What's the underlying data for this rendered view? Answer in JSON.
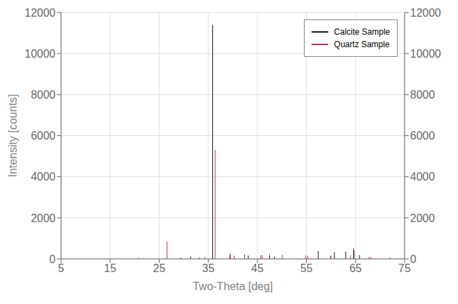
{
  "chart_data": {
    "type": "stem",
    "xlabel": "Two-Theta [deg]",
    "ylabel": "Intensity [counts]",
    "xlim": [
      5,
      75
    ],
    "ylim": [
      0,
      12000
    ],
    "xticks": [
      5,
      15,
      25,
      35,
      45,
      55,
      65,
      75
    ],
    "yticks": [
      0,
      2000,
      4000,
      6000,
      8000,
      10000,
      12000
    ],
    "y2lim": [
      0,
      12000
    ],
    "y2ticks": [
      0,
      2000,
      4000,
      6000,
      8000,
      10000,
      12000
    ],
    "grid": true,
    "legend": "upper right",
    "series": [
      {
        "name": "Calcite Sample",
        "color": "#1a1a1a",
        "x": [
          29.4,
          31.4,
          35.9,
          39.4,
          43.15,
          47.5,
          48.5,
          57.4,
          60.7,
          63.0,
          64.7,
          65.8,
          72.0
        ],
        "values": [
          60,
          120,
          11400,
          180,
          160,
          130,
          110,
          380,
          330,
          350,
          420,
          180,
          50
        ]
      },
      {
        "name": "Quartz Sample",
        "color": "#b03060",
        "x": [
          20.8,
          26.6,
          33.2,
          34.3,
          36.4,
          39.5,
          40.3,
          42.4,
          45.7,
          46.0,
          47.5,
          50.1,
          54.9,
          55.3,
          59.9,
          60.0,
          64.0,
          64.6,
          67.7,
          68.1
        ],
        "values": [
          50,
          850,
          70,
          90,
          5300,
          280,
          160,
          220,
          180,
          170,
          250,
          200,
          170,
          130,
          160,
          150,
          180,
          540,
          90,
          100
        ]
      }
    ]
  }
}
